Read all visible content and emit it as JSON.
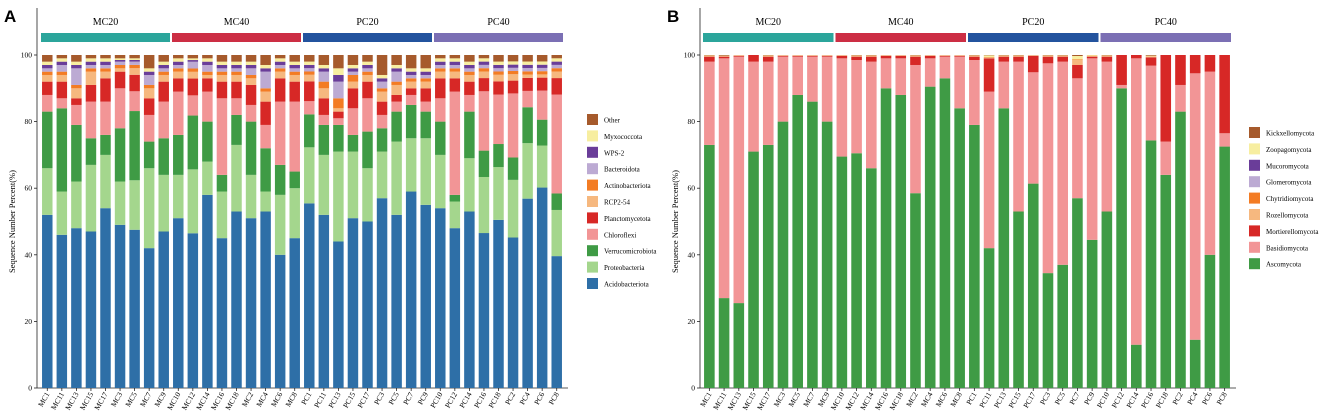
{
  "chart_data": [
    {
      "panel": "A",
      "type": "bar",
      "stacked": true,
      "ylabel": "Sequence Number Percent(%)",
      "ylim": [
        0,
        100
      ],
      "yticks": [
        0,
        20,
        40,
        60,
        80,
        100
      ],
      "groups": [
        {
          "label": "MC20",
          "color": "#2ba59b"
        },
        {
          "label": "MC40",
          "color": "#cc2e44"
        },
        {
          "label": "PC20",
          "color": "#23539e"
        },
        {
          "label": "PC40",
          "color": "#7b6fb4"
        }
      ],
      "categories": [
        "MC1",
        "MC11",
        "MC13",
        "MC15",
        "MC17",
        "MC3",
        "MC5",
        "MC7",
        "MC9",
        "MC10",
        "MC12",
        "MC14",
        "MC16",
        "MC18",
        "MC2",
        "MC4",
        "MC6",
        "MC8",
        "PC1",
        "PC11",
        "PC13",
        "PC15",
        "PC17",
        "PC3",
        "PC5",
        "PC7",
        "PC9",
        "PC10",
        "PC12",
        "PC14",
        "PC16",
        "PC18",
        "PC2",
        "PC4",
        "PC6",
        "PC8"
      ],
      "series": [
        {
          "name": "Acidobacteriota",
          "color": "#2e6fa7",
          "values": [
            52,
            46,
            48,
            47,
            54,
            49,
            48,
            42,
            47,
            51,
            46,
            58,
            45,
            53,
            51,
            53,
            40,
            45,
            56,
            52,
            44,
            51,
            50,
            57,
            52,
            59,
            55,
            54,
            48,
            53,
            47,
            51,
            47,
            58,
            62,
            40
          ]
        },
        {
          "name": "Proteobacteria",
          "color": "#a4d68d",
          "values": [
            14,
            13,
            14,
            20,
            16,
            13,
            15,
            24,
            17,
            13,
            19,
            10,
            14,
            20,
            13,
            6,
            18,
            15,
            17,
            18,
            27,
            20,
            16,
            14,
            22,
            16,
            20,
            16,
            8,
            16,
            17,
            16,
            18,
            17,
            13,
            14
          ]
        },
        {
          "name": "Verrucomicrobiota",
          "color": "#3f9b45",
          "values": [
            17,
            25,
            17,
            8,
            6,
            16,
            21,
            8,
            11,
            12,
            16,
            12,
            5,
            9,
            16,
            13,
            9,
            5,
            10,
            9,
            8,
            5,
            11,
            7,
            9,
            10,
            8,
            10,
            2,
            14,
            8,
            7,
            7,
            11,
            8,
            5
          ]
        },
        {
          "name": "Chloroflexi",
          "color": "#f29596",
          "values": [
            5,
            3,
            6,
            11,
            10,
            12,
            6,
            8,
            11,
            13,
            6,
            9,
            23,
            5,
            5,
            7,
            19,
            21,
            4,
            3,
            2,
            8,
            10,
            4,
            3,
            3,
            3,
            7,
            31,
            5,
            18,
            15,
            20,
            5,
            9,
            30
          ]
        },
        {
          "name": "Planctomycetota",
          "color": "#d72826",
          "values": [
            4,
            5,
            2,
            5,
            7,
            5,
            5,
            5,
            6,
            4,
            5,
            4,
            5,
            5,
            6,
            7,
            7,
            6,
            6,
            5,
            2,
            6,
            5,
            4,
            2,
            2,
            4,
            6,
            4,
            4,
            4,
            4,
            4,
            4,
            4,
            5
          ]
        },
        {
          "name": "RCP2-54",
          "color": "#f6b87f",
          "values": [
            2,
            2,
            3,
            4,
            2,
            1,
            2,
            3,
            2,
            2,
            2,
            1,
            2,
            2,
            2,
            3,
            2,
            2,
            2,
            3,
            1,
            2,
            2,
            3,
            3,
            2,
            2,
            2,
            2,
            2,
            2,
            2,
            2,
            1,
            1,
            2
          ]
        },
        {
          "name": "Actinobacteriota",
          "color": "#f37c24",
          "values": [
            1,
            1,
            1,
            1,
            1,
            1,
            1,
            1,
            1,
            1,
            1,
            1,
            1,
            1,
            1,
            1,
            1,
            1,
            1,
            2,
            3,
            2,
            1,
            1,
            1,
            1,
            1,
            1,
            1,
            1,
            1,
            1,
            1,
            1,
            1,
            1
          ]
        },
        {
          "name": "Bacteroidota",
          "color": "#bcaad3",
          "values": [
            1,
            2,
            5,
            1,
            1,
            1,
            1,
            3,
            1,
            1,
            2,
            2,
            1,
            1,
            2,
            5,
            1,
            1,
            1,
            3,
            5,
            1,
            1,
            2,
            3,
            1,
            1,
            1,
            1,
            1,
            1,
            1,
            1,
            1,
            1,
            1
          ]
        },
        {
          "name": "WPS-2",
          "color": "#6a3d99",
          "values": [
            1,
            1,
            1,
            1,
            1,
            0.5,
            0.5,
            1,
            1,
            1,
            0.5,
            1,
            1,
            1,
            1,
            1,
            1,
            1,
            1,
            1,
            2,
            1,
            1,
            1,
            1,
            1,
            1,
            1,
            1,
            1,
            1,
            1,
            1,
            1,
            1,
            1
          ]
        },
        {
          "name": "Myxococcota",
          "color": "#f7eea0",
          "values": [
            1,
            1,
            1,
            1,
            1,
            0.5,
            0.5,
            1,
            1,
            1,
            0.5,
            1,
            1,
            1,
            1,
            1,
            1,
            1,
            1,
            1,
            2,
            1,
            1,
            1,
            1,
            1,
            1,
            1,
            1,
            1,
            1,
            1,
            1,
            1,
            1,
            1
          ]
        },
        {
          "name": "Other",
          "color": "#a65a2c",
          "values": [
            2,
            1,
            2,
            1,
            1,
            1,
            1,
            4,
            2,
            1,
            1,
            1,
            2,
            2,
            2,
            3,
            1,
            2,
            2,
            3,
            4,
            3,
            2,
            6,
            3,
            4,
            4,
            1,
            1,
            2,
            1,
            2,
            2,
            2,
            2,
            1
          ]
        }
      ]
    },
    {
      "panel": "B",
      "type": "bar",
      "stacked": true,
      "ylabel": "Sequence Number Percent(%)",
      "ylim": [
        0,
        100
      ],
      "yticks": [
        0,
        20,
        40,
        60,
        80,
        100
      ],
      "groups": [
        {
          "label": "MC20",
          "color": "#2ba59b"
        },
        {
          "label": "MC40",
          "color": "#cc2e44"
        },
        {
          "label": "PC20",
          "color": "#23539e"
        },
        {
          "label": "PC40",
          "color": "#7b6fb4"
        }
      ],
      "categories": [
        "MC1",
        "MC11",
        "MC13",
        "MC15",
        "MC17",
        "MC3",
        "MC5",
        "MC7",
        "MC9",
        "MC10",
        "MC12",
        "MC14",
        "MC16",
        "MC18",
        "MC2",
        "MC4",
        "MC6",
        "MC8",
        "PC1",
        "PC11",
        "PC13",
        "PC15",
        "PC17",
        "PC3",
        "PC5",
        "PC7",
        "PC9",
        "PC10",
        "PC12",
        "PC14",
        "PC16",
        "PC18",
        "PC2",
        "PC4",
        "PC6",
        "PC8"
      ],
      "series": [
        {
          "name": "Ascomycota",
          "color": "#3f9b45",
          "values": [
            73,
            27,
            25.5,
            71,
            73,
            80,
            88,
            86,
            80,
            69.5,
            70.5,
            66,
            90,
            88,
            58.5,
            90.5,
            93,
            84,
            79,
            42,
            84,
            53,
            61.5,
            34.5,
            37,
            57,
            44.5,
            53,
            90,
            13,
            74.5,
            64,
            83,
            14.5,
            40,
            72.5
          ]
        },
        {
          "name": "Basidiomycota",
          "color": "#f29596",
          "values": [
            25,
            72,
            74,
            27,
            25,
            19.5,
            11.5,
            13.5,
            19.5,
            29.5,
            28,
            32,
            9,
            11,
            38.5,
            8.5,
            6.5,
            15.5,
            19.5,
            47,
            14,
            45,
            33.5,
            63,
            61,
            36,
            54.5,
            45,
            1,
            86,
            22.5,
            10,
            8,
            80,
            55,
            4
          ]
        },
        {
          "name": "Mortierellomycota",
          "color": "#d72826",
          "values": [
            1.5,
            0.5,
            0.3,
            2,
            1.5,
            0.3,
            0.3,
            0.3,
            0.3,
            0.8,
            1,
            1.5,
            0.8,
            0.8,
            2.5,
            0.8,
            0.3,
            0.3,
            1,
            10,
            1.5,
            1.5,
            5,
            2,
            1.5,
            4,
            0.5,
            1.5,
            9,
            1,
            2.5,
            26,
            9,
            5.5,
            5,
            23.5
          ]
        },
        {
          "name": "Rozellomycota",
          "color": "#f6b87f",
          "values": [
            0.2,
            0.2,
            0.1,
            0,
            0.2,
            0.1,
            0.1,
            0.1,
            0.1,
            0.1,
            0.2,
            0.2,
            0.1,
            0.1,
            0.2,
            0.1,
            0.1,
            0.1,
            0.2,
            0.3,
            0.2,
            0.2,
            0.1,
            0.2,
            0.2,
            1.5,
            0.2,
            0.2,
            0,
            0,
            0.2,
            0,
            0,
            0,
            0,
            0
          ]
        },
        {
          "name": "Chytridiomycota",
          "color": "#f37c24",
          "values": [
            0.1,
            0,
            0,
            0,
            0.1,
            0,
            0,
            0,
            0,
            0,
            0.1,
            0.1,
            0,
            0,
            0.1,
            0,
            0,
            0,
            0.1,
            0.1,
            0.1,
            0.1,
            0,
            0.1,
            0.1,
            0.2,
            0.1,
            0.1,
            0,
            0,
            0.1,
            0,
            0,
            0,
            0,
            0
          ]
        },
        {
          "name": "Glomeromycota",
          "color": "#bcaad3",
          "values": [
            0,
            0,
            0,
            0,
            0,
            0,
            0,
            0,
            0,
            0,
            0,
            0,
            0,
            0,
            0,
            0,
            0,
            0,
            0,
            0,
            0,
            0,
            0,
            0,
            0,
            0,
            0,
            0,
            0,
            0,
            0,
            0,
            0,
            0,
            0,
            0
          ]
        },
        {
          "name": "Mucoromycota",
          "color": "#6a3d99",
          "values": [
            0,
            0,
            0,
            0,
            0,
            0,
            0,
            0,
            0,
            0,
            0,
            0,
            0,
            0,
            0,
            0,
            0,
            0,
            0,
            0,
            0,
            0,
            0,
            0,
            0,
            0,
            0,
            0,
            0,
            0,
            0,
            0,
            0,
            0,
            0,
            0
          ]
        },
        {
          "name": "Zoopagomycota",
          "color": "#f7eea0",
          "values": [
            0.1,
            0.1,
            0.1,
            0,
            0.1,
            0.1,
            0.1,
            0.1,
            0.1,
            0.1,
            0.1,
            0.1,
            0.1,
            0.1,
            0.1,
            0.1,
            0.1,
            0.1,
            0.1,
            0.5,
            0.1,
            0.1,
            0.1,
            0.1,
            0.1,
            1,
            0.2,
            0.1,
            0,
            0,
            0.2,
            0,
            0,
            0,
            0,
            0
          ]
        },
        {
          "name": "Kickxellomycota",
          "color": "#a65a2c",
          "values": [
            0.1,
            0.2,
            0,
            0,
            0.1,
            0,
            0,
            0,
            0,
            0,
            0.1,
            0.1,
            0,
            0,
            0.1,
            0,
            0,
            0,
            0.1,
            0.1,
            0.1,
            0.1,
            0,
            0.1,
            0.1,
            0.3,
            0,
            0.1,
            0,
            0,
            0.2,
            0,
            0,
            0,
            0,
            0
          ]
        }
      ]
    }
  ]
}
